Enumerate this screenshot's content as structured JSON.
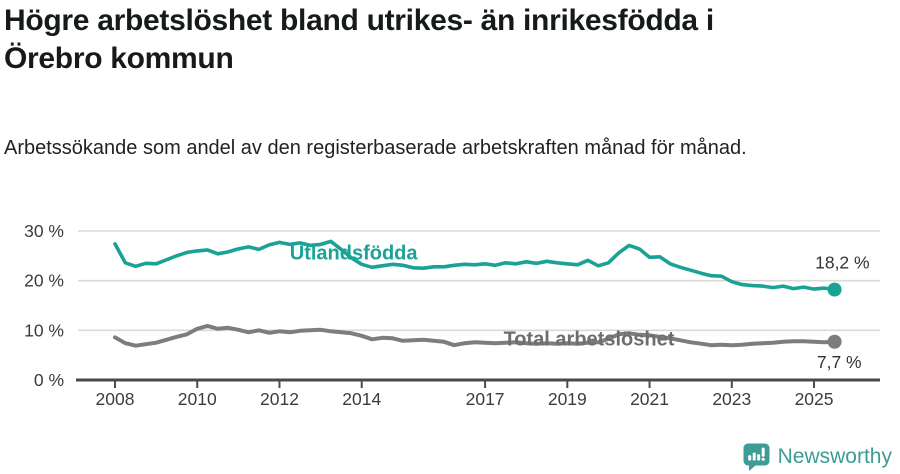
{
  "page": {
    "title": "Högre arbetslöshet bland utrikes- än inrikesfödda i Örebro kommun",
    "subtitle": "Arbetssökande som andel av den registerbaserade arbetskraften månad för månad."
  },
  "footer": {
    "brand": "Newsworthy",
    "logo_icon": "newsworthy-speech-bubble-barchart-icon"
  },
  "colors": {
    "accent_teal": "#1aa296",
    "total_gray": "#7d7d7d",
    "total_label_gray": "#6e6e6e",
    "grid": "#d9d9d9",
    "axis": "#4a4a4a",
    "tick_text": "#3c3c3c",
    "end_label_text": "#333333",
    "brand_teal": "#3d9c95"
  },
  "chart_data": {
    "type": "line",
    "title": "Högre arbetslöshet bland utrikes- än inrikesfödda i Örebro kommun",
    "subtitle": "Arbetssökande som andel av den registerbaserade arbetskraften månad för månad.",
    "x_unit": "year (monthly series, values sampled quarterly from chart)",
    "x_start": 2008.0,
    "x_step": 0.25,
    "xlim": [
      2007.1,
      2026.6
    ],
    "ylim": [
      0,
      32
    ],
    "grid": "horizontal gridlines at 10/20/30",
    "legend": "inline series labels",
    "x_ticks": [
      2008,
      2010,
      2012,
      2014,
      2017,
      2019,
      2021,
      2023,
      2025
    ],
    "x_tick_labels": [
      "2008",
      "2010",
      "2012",
      "2014",
      "2017",
      "2019",
      "2021",
      "2023",
      "2025"
    ],
    "y_ticks": [
      0,
      10,
      20,
      30
    ],
    "y_tick_labels": [
      "0 %",
      "10 %",
      "20 %",
      "30 %"
    ],
    "series": [
      {
        "name": "Utlandsfödda",
        "color": "#1aa296",
        "end_label": "18,2 %",
        "last_value": 18.2,
        "label_anchor": {
          "x_year": 2012.25,
          "y_value": 25.7
        },
        "values": [
          27.4,
          23.6,
          22.9,
          23.5,
          23.4,
          24.2,
          25.0,
          25.7,
          26.0,
          26.2,
          25.4,
          25.8,
          26.4,
          26.8,
          26.3,
          27.2,
          27.7,
          27.3,
          27.6,
          27.1,
          27.3,
          27.9,
          26.3,
          24.6,
          23.3,
          22.7,
          23.0,
          23.3,
          23.1,
          22.6,
          22.5,
          22.8,
          22.8,
          23.1,
          23.3,
          23.2,
          23.4,
          23.1,
          23.6,
          23.4,
          23.8,
          23.5,
          23.9,
          23.6,
          23.4,
          23.2,
          24.1,
          23.0,
          23.6,
          25.6,
          27.1,
          26.4,
          24.7,
          24.8,
          23.4,
          22.7,
          22.1,
          21.5,
          21.0,
          20.9,
          19.8,
          19.2,
          19.0,
          18.9,
          18.6,
          18.9,
          18.4,
          18.7,
          18.3,
          18.5,
          18.2
        ]
      },
      {
        "name": "Total arbetslöshet",
        "color": "#7d7d7d",
        "end_label": "7,7 %",
        "last_value": 7.7,
        "label_anchor": {
          "x_year": 2017.45,
          "y_value": 8.4
        },
        "values": [
          8.6,
          7.4,
          6.9,
          7.2,
          7.5,
          8.1,
          8.7,
          9.2,
          10.3,
          10.9,
          10.3,
          10.5,
          10.1,
          9.6,
          10.0,
          9.5,
          9.8,
          9.6,
          9.9,
          10.0,
          10.1,
          9.8,
          9.6,
          9.4,
          8.9,
          8.2,
          8.5,
          8.4,
          7.9,
          8.0,
          8.1,
          7.9,
          7.7,
          7.0,
          7.4,
          7.6,
          7.5,
          7.4,
          7.5,
          7.6,
          7.4,
          7.3,
          7.4,
          7.3,
          7.4,
          7.3,
          7.5,
          7.6,
          8.3,
          9.2,
          9.4,
          9.1,
          9.0,
          8.7,
          8.4,
          8.0,
          7.6,
          7.3,
          7.0,
          7.1,
          7.0,
          7.1,
          7.3,
          7.4,
          7.5,
          7.7,
          7.8,
          7.8,
          7.7,
          7.6,
          7.7
        ]
      }
    ]
  }
}
